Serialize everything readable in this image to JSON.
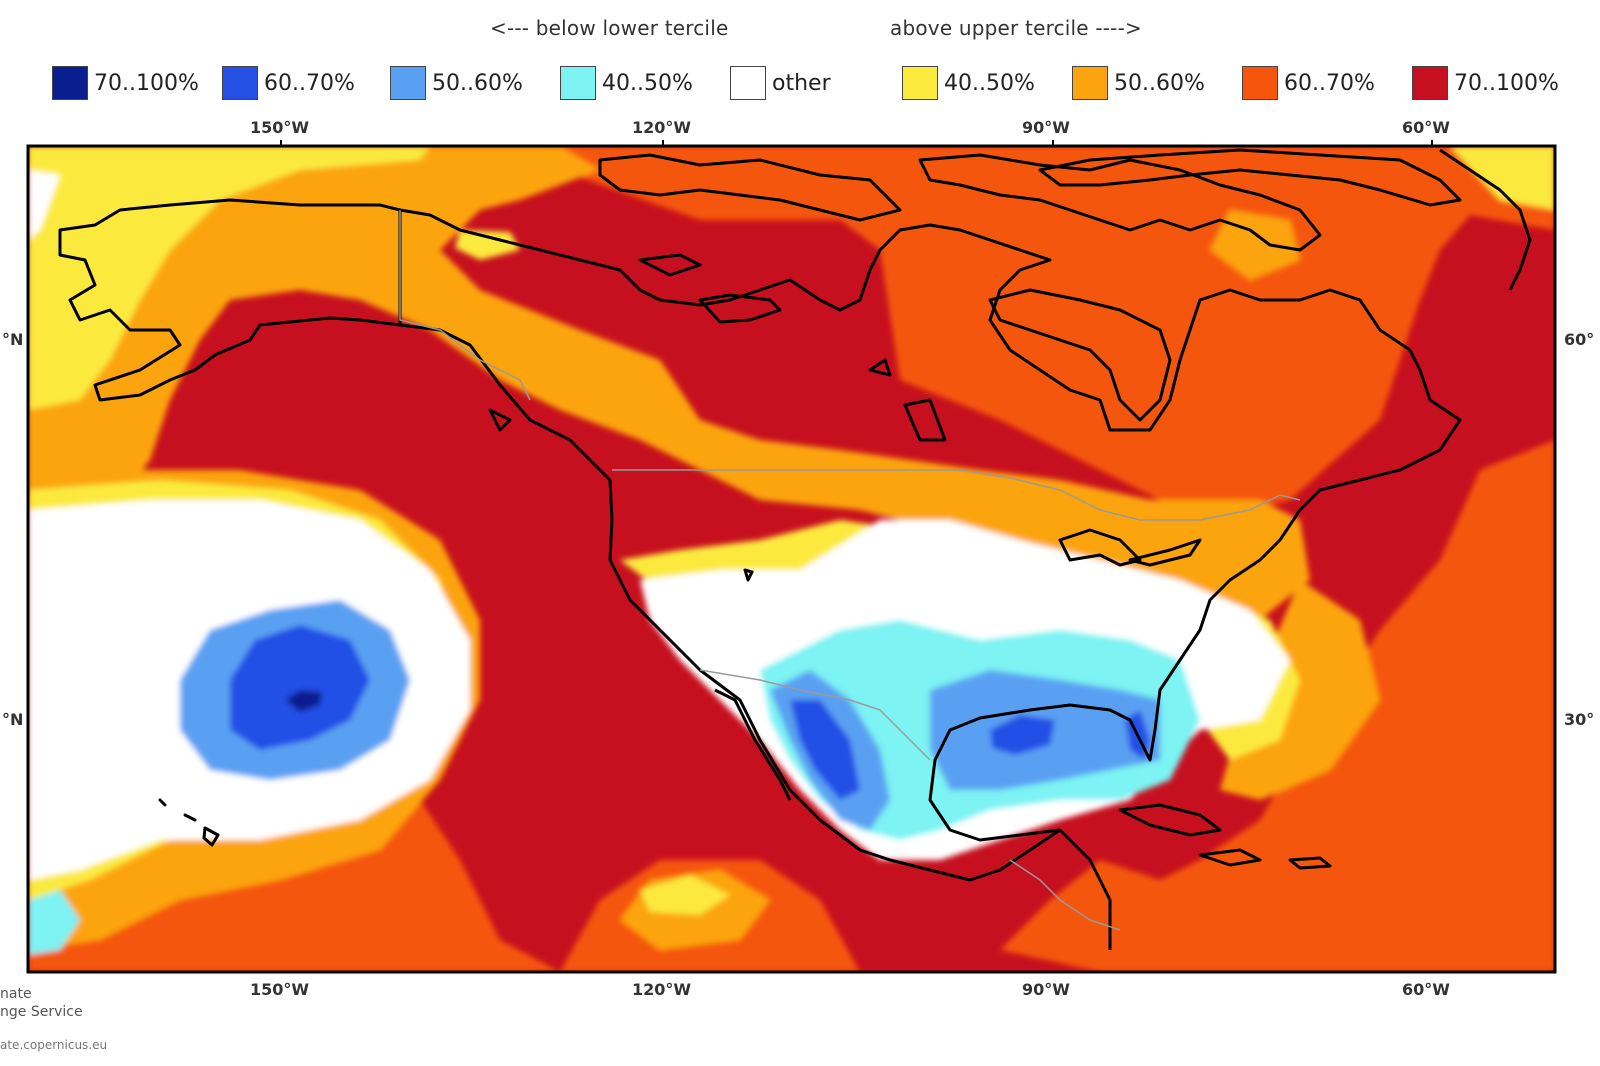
{
  "header": {
    "below_text": "<--- below lower tercile",
    "above_text": "above upper tercile ---->"
  },
  "legend": [
    {
      "label": "70..100%",
      "color": "#0a1f8f"
    },
    {
      "label": "60..70%",
      "color": "#2450e6"
    },
    {
      "label": "50..60%",
      "color": "#5aa0f2"
    },
    {
      "label": "40..50%",
      "color": "#7df3f3"
    },
    {
      "label": "other",
      "color": "#ffffff"
    },
    {
      "label": "40..50%",
      "color": "#fbea3c"
    },
    {
      "label": "50..60%",
      "color": "#fca410"
    },
    {
      "label": "60..70%",
      "color": "#f5560c"
    },
    {
      "label": "70..100%",
      "color": "#c7101f"
    }
  ],
  "axes": {
    "top_lon": [
      "150°W",
      "120°W",
      "90°W",
      "60°W"
    ],
    "bottom_lon": [
      "150°W",
      "120°W",
      "90°W",
      "60°W"
    ],
    "lat_left": [
      "°N",
      "°N"
    ],
    "lat_right": [
      "60°",
      "30°"
    ]
  },
  "credit": {
    "line1": "nate",
    "line2": "nge Service",
    "url": "ate.copernicus.eu"
  }
}
